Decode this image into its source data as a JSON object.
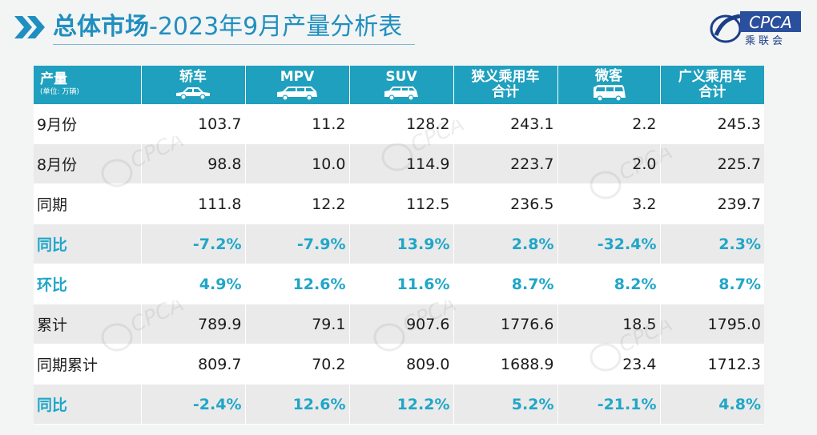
{
  "header": {
    "title_bold": "总体市场",
    "title_rest": "-2023年9月产量分析表",
    "logo_text": "CPCA",
    "logo_cn": "乘联会"
  },
  "table": {
    "corner_label": "产量",
    "corner_unit": "(单位: 万辆)",
    "columns": [
      {
        "label": "轿车"
      },
      {
        "label": "MPV"
      },
      {
        "label": "SUV"
      },
      {
        "label1": "狭义乘用车",
        "label2": "合计"
      },
      {
        "label": "微客"
      },
      {
        "label1": "广义乘用车",
        "label2": "合计"
      }
    ],
    "rows": [
      {
        "label": "9月份",
        "values": [
          "103.7",
          "11.2",
          "128.2",
          "243.1",
          "2.2",
          "245.3"
        ]
      },
      {
        "label": "8月份",
        "values": [
          "98.8",
          "10.0",
          "114.9",
          "223.7",
          "2.0",
          "225.7"
        ]
      },
      {
        "label": "同期",
        "values": [
          "111.8",
          "12.2",
          "112.5",
          "236.5",
          "3.2",
          "239.7"
        ]
      },
      {
        "label": "同比",
        "values": [
          "-7.2%",
          "-7.9%",
          "13.9%",
          "2.8%",
          "-32.4%",
          "2.3%"
        ]
      },
      {
        "label": "环比",
        "values": [
          "4.9%",
          "12.6%",
          "11.6%",
          "8.7%",
          "8.2%",
          "8.7%"
        ]
      },
      {
        "label": "累计",
        "values": [
          "789.9",
          "79.1",
          "907.6",
          "1776.6",
          "18.5",
          "1795.0"
        ]
      },
      {
        "label": "同期累计",
        "values": [
          "809.7",
          "70.2",
          "809.0",
          "1688.9",
          "23.4",
          "1712.3"
        ]
      },
      {
        "label": "同比",
        "values": [
          "-2.4%",
          "12.6%",
          "12.2%",
          "5.2%",
          "-21.1%",
          "4.8%"
        ]
      }
    ]
  },
  "colors": {
    "accent": "#1fa0be",
    "pct_text": "#20a6c8",
    "row_white": "#ffffff",
    "row_gray": "#eaeaea",
    "title": "#1f8fbf"
  }
}
